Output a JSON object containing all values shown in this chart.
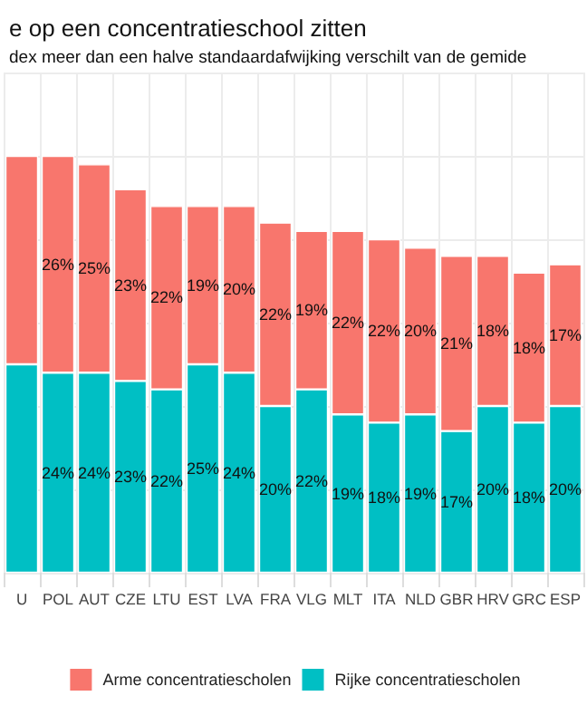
{
  "chart_data": {
    "type": "bar",
    "title": "e op een concentratieschool zitten",
    "subtitle": "dex meer dan een halve standaardafwijking verschilt van de gemide",
    "categories": [
      "U",
      "POL",
      "AUT",
      "CZE",
      "LTU",
      "EST",
      "LVA",
      "FRA",
      "VLG",
      "MLT",
      "ITA",
      "NLD",
      "GBR",
      "HRV",
      "GRC",
      "ESP"
    ],
    "stacked": true,
    "series": [
      {
        "name": "Rijke concentratiescholen",
        "color": "#00bfc4",
        "values": [
          25,
          24,
          24,
          23,
          22,
          25,
          24,
          20,
          22,
          19,
          18,
          19,
          17,
          20,
          18,
          20
        ],
        "value_labels": [
          null,
          "24%",
          "24%",
          "23%",
          "22%",
          "25%",
          "24%",
          "20%",
          "22%",
          "19%",
          "18%",
          "19%",
          "17%",
          "20%",
          "18%",
          "20%"
        ]
      },
      {
        "name": "Arme concentratiescholen",
        "color": "#f8766d",
        "values": [
          25,
          26,
          25,
          23,
          22,
          19,
          20,
          22,
          19,
          22,
          22,
          20,
          21,
          18,
          18,
          17
        ],
        "value_labels": [
          null,
          "26%",
          "25%",
          "23%",
          "22%",
          "19%",
          "20%",
          "22%",
          "19%",
          "22%",
          "22%",
          "20%",
          "21%",
          "18%",
          "18%",
          "17%"
        ]
      }
    ],
    "ylim": [
      0,
      60
    ],
    "yticks": [
      {
        "value": 0,
        "label": null
      },
      {
        "value": 10,
        "label": null
      },
      {
        "value": 20,
        "label": null
      },
      {
        "value": 30,
        "label": null
      },
      {
        "value": 40,
        "label": null
      },
      {
        "value": 50,
        "label": null
      },
      {
        "value": 60,
        "label": null
      }
    ],
    "grid": true,
    "legend": "bottom",
    "tick_labels": "x"
  }
}
